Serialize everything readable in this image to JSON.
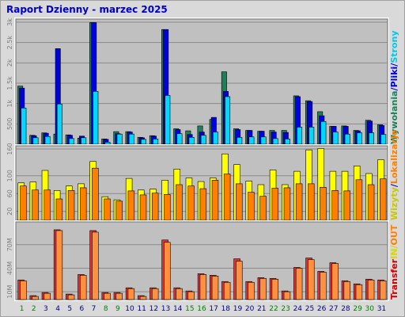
{
  "title": "Raport Dzienny -  marzec 2025",
  "chart_data": [
    {
      "type": "bar",
      "panel": "top",
      "categories": [
        "1",
        "2",
        "3",
        "4",
        "5",
        "6",
        "7",
        "8",
        "9",
        "10",
        "11",
        "12",
        "13",
        "14",
        "15",
        "16",
        "17",
        "18",
        "19",
        "20",
        "21",
        "22",
        "23",
        "24",
        "25",
        "26",
        "27",
        "28",
        "29",
        "30",
        "31"
      ],
      "weekend_days": [
        "1",
        "2",
        "8",
        "9",
        "15",
        "16",
        "22",
        "23",
        "29",
        "30"
      ],
      "ymax": 3000,
      "ticks": [
        {
          "v": 500,
          "label": "500"
        },
        {
          "v": 1000,
          "label": "1k"
        },
        {
          "v": 1500,
          "label": "1.5k"
        },
        {
          "v": 2000,
          "label": "2k"
        },
        {
          "v": 2500,
          "label": "2.5k"
        },
        {
          "v": 3000,
          "label": "3k"
        }
      ],
      "series": [
        {
          "name": "Wywołania",
          "color": "#1e7f5a",
          "values": [
            1430,
            220,
            280,
            250,
            230,
            150,
            2990,
            130,
            310,
            310,
            170,
            210,
            2820,
            380,
            330,
            450,
            610,
            1780,
            380,
            340,
            320,
            340,
            340,
            1190,
            1070,
            800,
            440,
            450,
            340,
            590,
            480
          ]
        },
        {
          "name": "Pliki",
          "color": "#0000e0",
          "values": [
            1380,
            210,
            270,
            2350,
            220,
            200,
            2990,
            120,
            260,
            300,
            160,
            200,
            2820,
            360,
            240,
            300,
            660,
            1300,
            360,
            340,
            320,
            300,
            290,
            1170,
            1050,
            700,
            440,
            440,
            330,
            570,
            460
          ]
        },
        {
          "name": "Strony",
          "color": "#00d8ff",
          "values": [
            890,
            160,
            190,
            990,
            140,
            160,
            1300,
            50,
            250,
            250,
            120,
            130,
            1200,
            260,
            170,
            220,
            300,
            1170,
            170,
            180,
            180,
            140,
            130,
            420,
            420,
            560,
            300,
            250,
            280,
            280,
            240
          ]
        }
      ],
      "legend": [
        {
          "label": "Wywołania",
          "color": "#1e7f5a"
        },
        {
          "label": "/",
          "color": "#0000cc"
        },
        {
          "label": "Pliki",
          "color": "#0000e0"
        },
        {
          "label": "/",
          "color": "#0000cc"
        },
        {
          "label": "Strony",
          "color": "#00c8e8"
        }
      ]
    },
    {
      "type": "bar",
      "panel": "middle",
      "categories": [
        "1",
        "2",
        "3",
        "4",
        "5",
        "6",
        "7",
        "8",
        "9",
        "10",
        "11",
        "12",
        "13",
        "14",
        "15",
        "16",
        "17",
        "18",
        "19",
        "20",
        "21",
        "22",
        "23",
        "24",
        "25",
        "26",
        "27",
        "28",
        "29",
        "30",
        "31"
      ],
      "ymax": 160,
      "ticks": [
        {
          "v": 20,
          "label": "20"
        },
        {
          "v": 60,
          "label": "60"
        },
        {
          "v": 100,
          "label": "100"
        },
        {
          "v": 160,
          "label": "160"
        }
      ],
      "series": [
        {
          "name": "Wizyty",
          "color": "#ffff00",
          "values": [
            84,
            86,
            112,
            67,
            77,
            82,
            132,
            53,
            46,
            94,
            68,
            70,
            90,
            115,
            95,
            87,
            95,
            149,
            125,
            88,
            80,
            113,
            80,
            110,
            158,
            161,
            110,
            110,
            122,
            105,
            136
          ]
        },
        {
          "name": "Lokalizacje",
          "color": "#ff8000",
          "values": [
            77,
            68,
            68,
            48,
            67,
            73,
            117,
            48,
            43,
            66,
            57,
            61,
            58,
            80,
            77,
            71,
            90,
            104,
            82,
            63,
            54,
            72,
            73,
            82,
            82,
            74,
            67,
            66,
            91,
            80,
            93
          ]
        }
      ],
      "legend": [
        {
          "label": "Wizyty",
          "color": "#c8c800"
        },
        {
          "label": "/",
          "color": "#0000cc"
        },
        {
          "label": "Lokalizacje",
          "color": "#ff8000"
        }
      ]
    },
    {
      "type": "bar",
      "panel": "bottom",
      "categories": [
        "1",
        "2",
        "3",
        "4",
        "5",
        "6",
        "7",
        "8",
        "9",
        "10",
        "11",
        "12",
        "13",
        "14",
        "15",
        "16",
        "17",
        "18",
        "19",
        "20",
        "21",
        "22",
        "23",
        "24",
        "25",
        "26",
        "27",
        "28",
        "29",
        "30",
        "31"
      ],
      "ymax": 95,
      "ticks": [
        {
          "v": 10,
          "label": "10M"
        },
        {
          "v": 40,
          "label": "40M"
        },
        {
          "v": 70,
          "label": "70M"
        }
      ],
      "series": [
        {
          "name": "Transfer",
          "color": "#e83030",
          "values": [
            25,
            5,
            9,
            89,
            7,
            32,
            88,
            9,
            9,
            15,
            5,
            15,
            76,
            15,
            11,
            33,
            31,
            23,
            52,
            23,
            28,
            27,
            11,
            41,
            53,
            36,
            47,
            24,
            20,
            26,
            25
          ]
        },
        {
          "name": "Transfer IN",
          "color": "#ff9040",
          "values": [
            24,
            4,
            8,
            88,
            6,
            31,
            86,
            8,
            8,
            14,
            4,
            14,
            73,
            14,
            10,
            32,
            30,
            22,
            49,
            22,
            27,
            26,
            10,
            40,
            51,
            35,
            46,
            23,
            19,
            25,
            24
          ]
        }
      ],
      "legend": [
        {
          "label": "Transfer",
          "color": "#cc0000"
        },
        {
          "label": "IN",
          "color": "#d8d800"
        },
        {
          "label": "/",
          "color": "#d8d800"
        },
        {
          "label": "OUT",
          "color": "#ff8000"
        }
      ]
    }
  ]
}
